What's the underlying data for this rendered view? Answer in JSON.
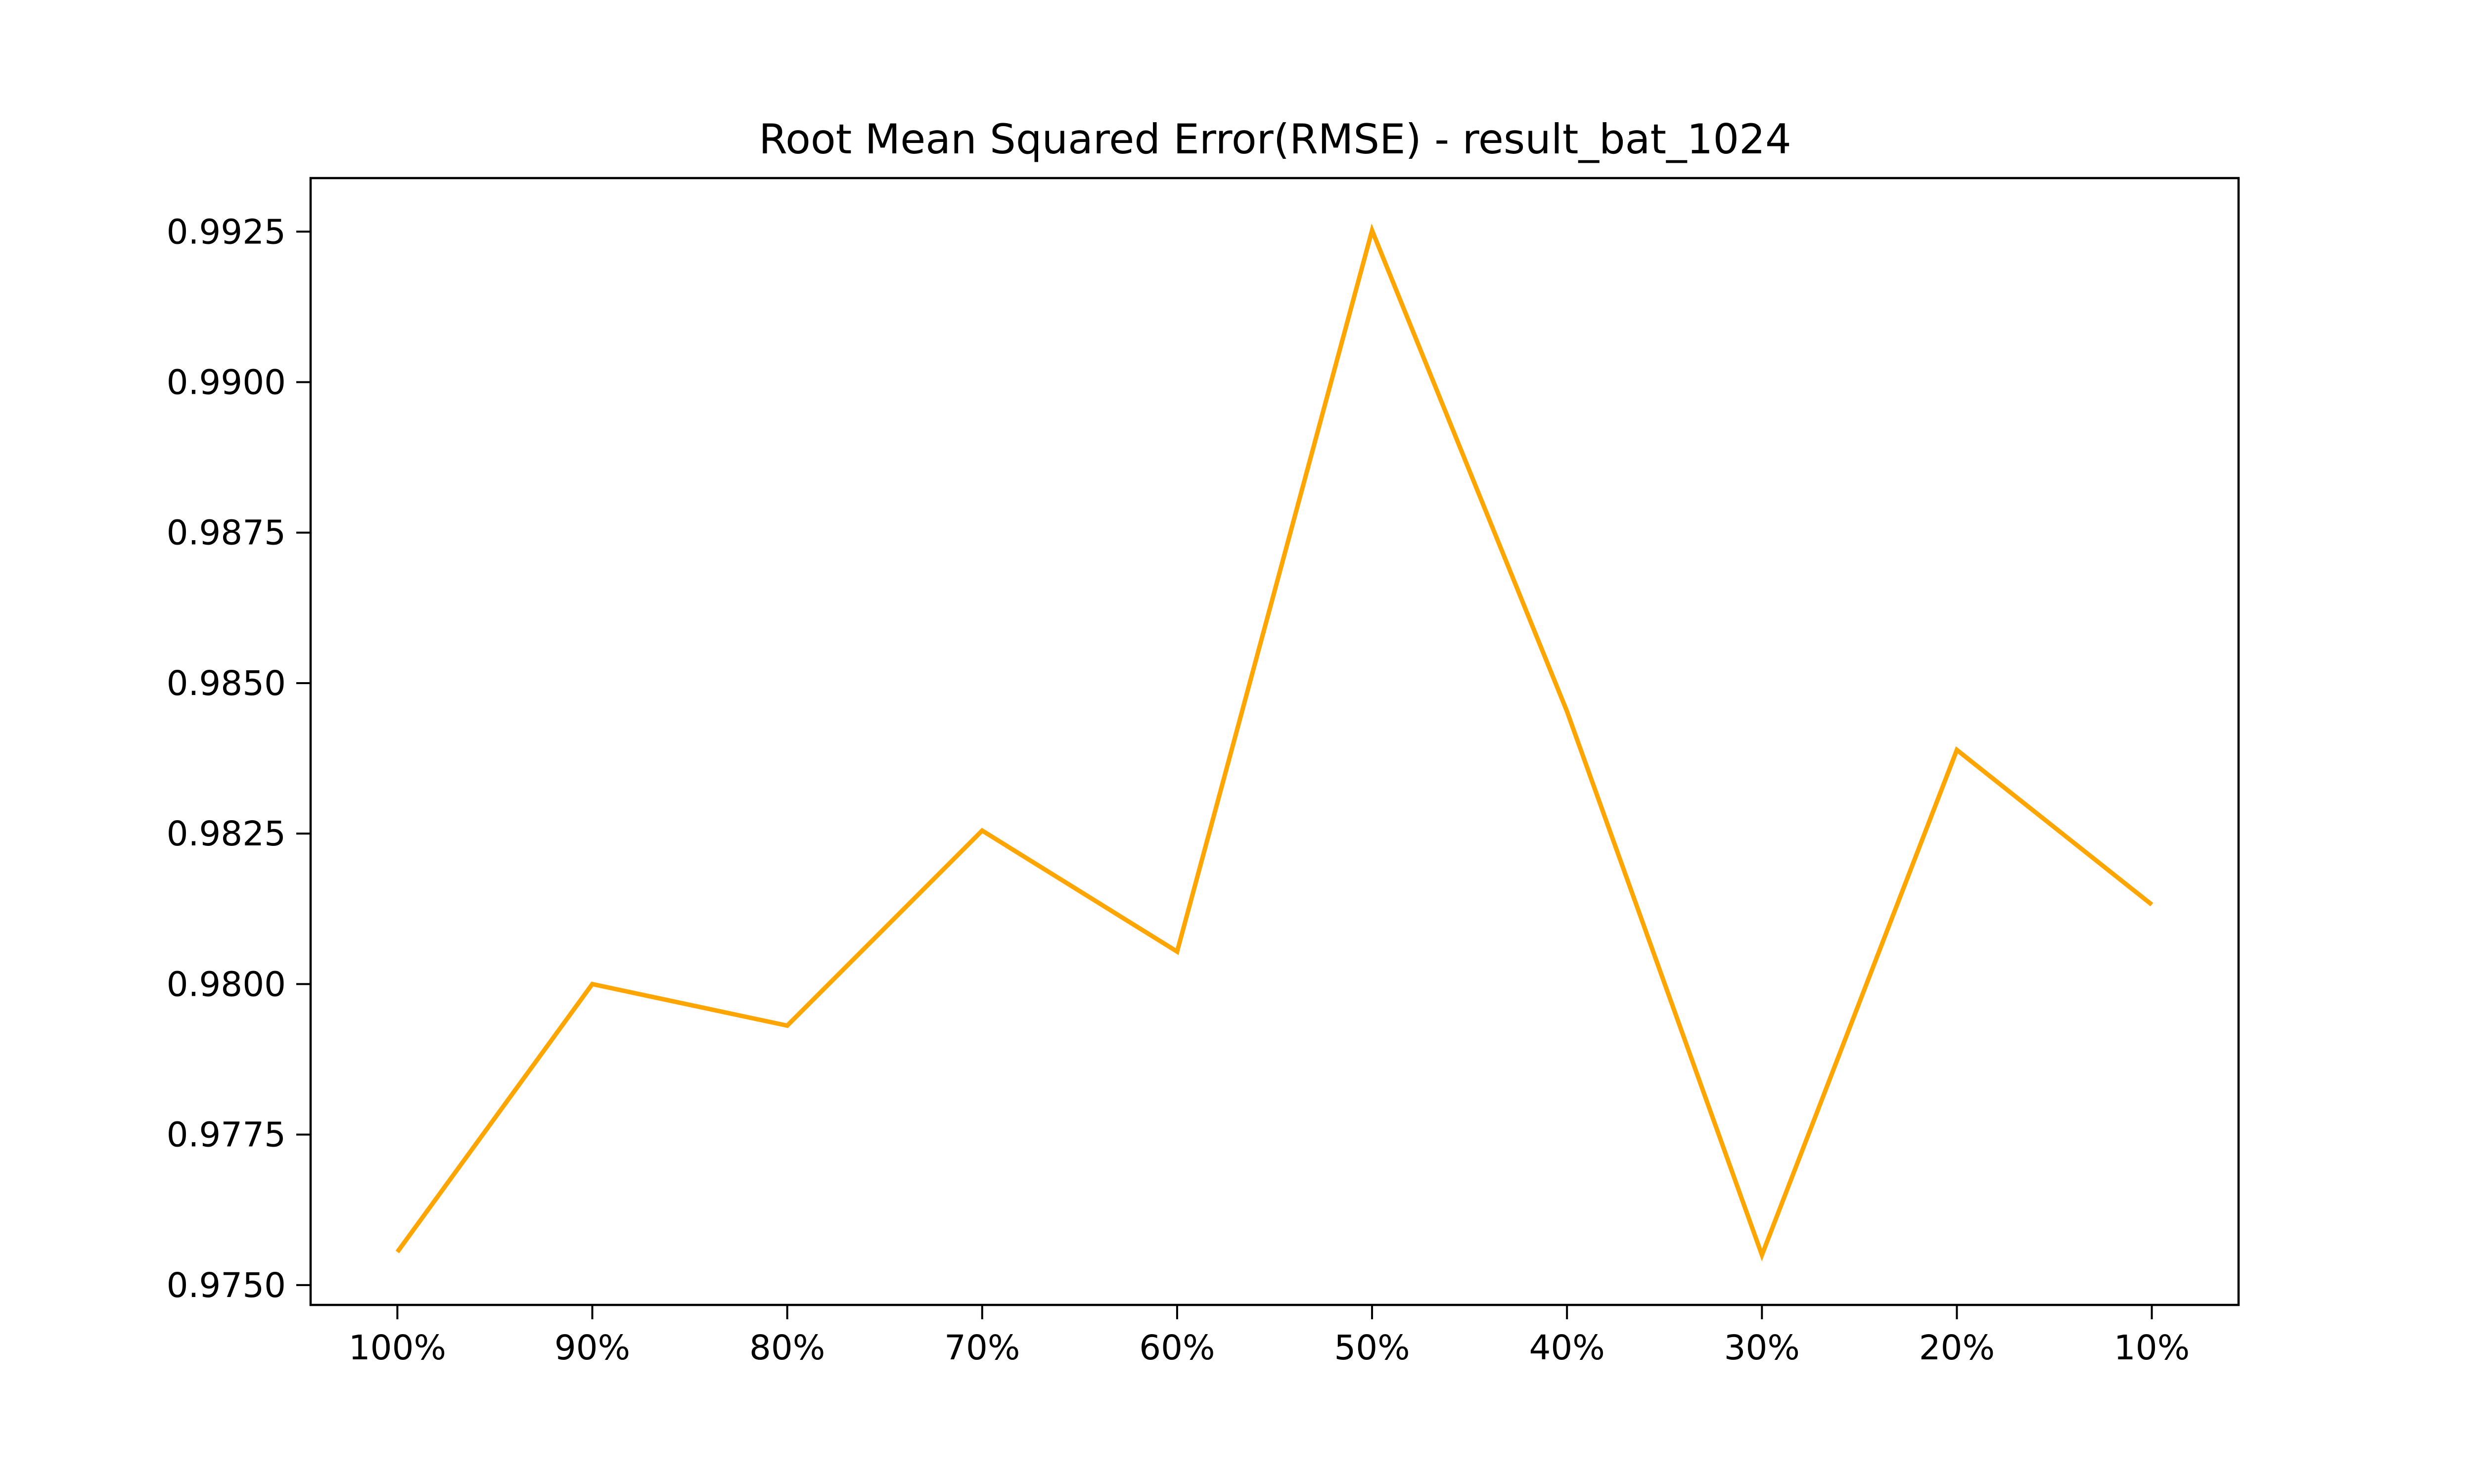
{
  "chart_data": {
    "type": "line",
    "title": "Root Mean Squared Error(RMSE) - result_bat_1024",
    "xlabel": "",
    "ylabel": "",
    "categories": [
      "100%",
      "90%",
      "80%",
      "70%",
      "60%",
      "50%",
      "40%",
      "30%",
      "20%",
      "10%"
    ],
    "series": [
      {
        "values": [
          0.97555,
          0.98,
          0.97931,
          0.98255,
          0.98054,
          0.99252,
          0.98453,
          0.9755,
          0.98389,
          0.98132
        ],
        "color": "#FFA500"
      }
    ],
    "yticks": [
      "0.9750",
      "0.9775",
      "0.9800",
      "0.9825",
      "0.9850",
      "0.9875",
      "0.9900",
      "0.9925"
    ],
    "ylim": [
      0.97467,
      0.99339
    ],
    "grid": false,
    "legend": "none"
  }
}
